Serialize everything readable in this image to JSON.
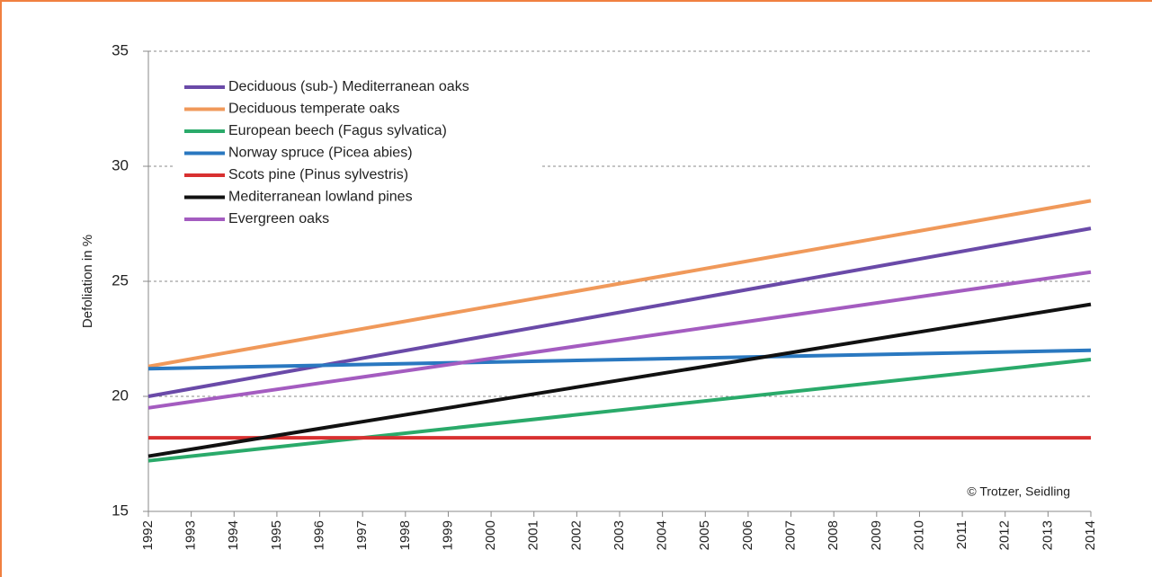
{
  "chart_data": {
    "type": "line",
    "ylabel": "Defoliation in %",
    "annotation": "© Trotzer, Seidling",
    "x": [
      1992,
      2014
    ],
    "xlim": [
      1992,
      2014
    ],
    "xticks": [
      1992,
      1993,
      1994,
      1995,
      1996,
      1997,
      1998,
      1999,
      2000,
      2001,
      2002,
      2003,
      2004,
      2005,
      2006,
      2007,
      2008,
      2009,
      2010,
      2011,
      2012,
      2013,
      2014
    ],
    "ylim": [
      15,
      35
    ],
    "yticks": [
      15,
      20,
      25,
      30,
      35
    ],
    "grid": true,
    "legend": "upper left",
    "series": [
      {
        "name": "Deciduous (sub-) Mediterranean oaks",
        "color": "#6a4aa8",
        "values": [
          20.0,
          27.3
        ]
      },
      {
        "name": "Deciduous temperate oaks",
        "color": "#f0995a",
        "values": [
          21.3,
          28.5
        ]
      },
      {
        "name": "European beech (Fagus sylvatica)",
        "color": "#2aaa6a",
        "values": [
          17.2,
          21.6
        ]
      },
      {
        "name": "Norway spruce (Picea abies)",
        "color": "#2a78c0",
        "values": [
          21.2,
          22.0
        ]
      },
      {
        "name": "Scots pine (Pinus sylvestris)",
        "color": "#d83030",
        "values": [
          18.2,
          18.2
        ]
      },
      {
        "name": "Mediterranean lowland pines",
        "color": "#111111",
        "values": [
          17.4,
          24.0
        ]
      },
      {
        "name": "Evergreen oaks",
        "color": "#a45cc0",
        "values": [
          19.5,
          25.4
        ]
      }
    ]
  }
}
